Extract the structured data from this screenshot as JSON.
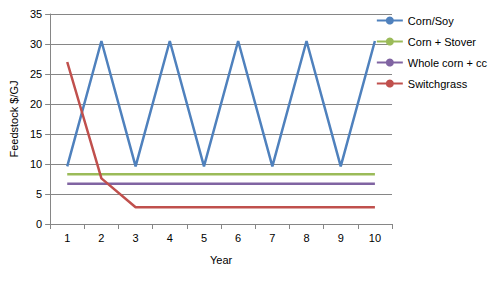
{
  "chart_data": {
    "type": "line",
    "x_label": "Year",
    "y_label": "Feedstock $/GJ",
    "categories": [
      "1",
      "2",
      "3",
      "4",
      "5",
      "6",
      "7",
      "8",
      "9",
      "10"
    ],
    "series": [
      {
        "name": "Corn/Soy",
        "color": "#4f81bd",
        "values": [
          9.6,
          30.5,
          9.6,
          30.5,
          9.6,
          30.5,
          9.6,
          30.5,
          9.6,
          30.5
        ]
      },
      {
        "name": "Corn + Stover",
        "color": "#9bbb59",
        "values": [
          8.3,
          8.3,
          8.3,
          8.3,
          8.3,
          8.3,
          8.3,
          8.3,
          8.3,
          8.3
        ]
      },
      {
        "name": "Whole corn + cc",
        "color": "#8064a2",
        "values": [
          6.7,
          6.7,
          6.7,
          6.7,
          6.7,
          6.7,
          6.7,
          6.7,
          6.7,
          6.7
        ]
      },
      {
        "name": "Switchgrass",
        "color": "#c0504d",
        "values": [
          27,
          7.6,
          2.8,
          2.8,
          2.8,
          2.8,
          2.8,
          2.8,
          2.8,
          2.8
        ]
      }
    ],
    "ylim": [
      0,
      35
    ],
    "yticks": [
      0,
      5,
      10,
      15,
      20,
      25,
      30,
      35
    ],
    "grid": true,
    "legend": "right"
  }
}
